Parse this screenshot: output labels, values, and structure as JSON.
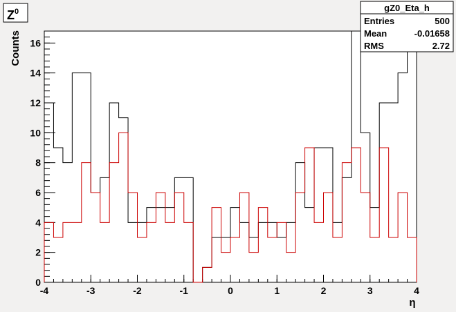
{
  "corner_label": {
    "text": "Z",
    "superscript": "0"
  },
  "stats": {
    "name": "gZ0_Eta_h",
    "rows": [
      {
        "label": "Entries",
        "value": "500"
      },
      {
        "label": "Mean",
        "value": "-0.01658"
      },
      {
        "label": "RMS",
        "value": "2.72"
      }
    ]
  },
  "chart_data": {
    "type": "histogram",
    "title": "",
    "xlabel": "η",
    "ylabel": "Counts",
    "xlim": [
      -4,
      4
    ],
    "ylim": [
      0,
      16.8
    ],
    "x_ticks": [
      -4,
      -3,
      -2,
      -1,
      0,
      1,
      2,
      3,
      4
    ],
    "y_ticks": [
      0,
      2,
      4,
      6,
      8,
      10,
      12,
      14,
      16
    ],
    "bin_edges": [
      -4.0,
      -3.8,
      -3.6,
      -3.4,
      -3.2,
      -3.0,
      -2.8,
      -2.6,
      -2.4,
      -2.2,
      -2.0,
      -1.8,
      -1.6,
      -1.4,
      -1.2,
      -1.0,
      -0.8,
      -0.6,
      -0.4,
      -0.2,
      0.0,
      0.2,
      0.4,
      0.6,
      0.8,
      1.0,
      1.2,
      1.4,
      1.6,
      1.8,
      2.0,
      2.2,
      2.4,
      2.6,
      2.8,
      3.0,
      3.2,
      3.4,
      3.6,
      3.8,
      4.0
    ],
    "series": [
      {
        "color": "#000000",
        "values": [
          12,
          9,
          8,
          14,
          14,
          6,
          7,
          12,
          11,
          4,
          4,
          5,
          5,
          5,
          7,
          7,
          0,
          1,
          3,
          3,
          5,
          4,
          3,
          4,
          4,
          3,
          4,
          8,
          5,
          9,
          9,
          4,
          7,
          17,
          10,
          5,
          12,
          12,
          14,
          17
        ]
      },
      {
        "color": "#cc0000",
        "values": [
          4,
          3,
          4,
          4,
          8,
          6,
          4,
          8,
          10,
          6,
          3,
          4,
          6,
          4,
          6,
          4,
          0,
          1,
          5,
          2,
          3,
          6,
          2,
          5,
          3,
          4,
          2,
          6,
          9,
          4,
          6,
          3,
          8,
          9,
          6,
          3,
          9,
          3,
          6,
          3
        ]
      }
    ]
  }
}
